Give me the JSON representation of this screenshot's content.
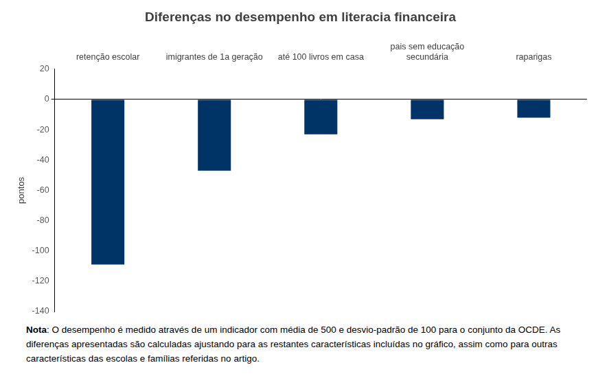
{
  "chart_data": {
    "type": "bar",
    "title": "Diferenças no desempenho em literacia financeira",
    "categories": [
      "retenção escolar",
      "imigrantes de 1a geração",
      "até 100 livros em casa",
      "pais sem educação secundária",
      "raparigas"
    ],
    "values": [
      -109,
      -47,
      -23,
      -13,
      -12
    ],
    "color": "#003366",
    "y_label": "pontos",
    "ylim": [
      -140,
      20
    ],
    "yticks": [
      -140,
      -120,
      -100,
      -80,
      -60,
      -40,
      -20,
      0,
      20
    ],
    "grid": false,
    "note": "Nota: O desempenho é medido através de um indicador com média de 500 e desvio-padrão de 100 para o conjunto da OCDE. As diferenças apresentadas são calculadas ajustando para as restantes características incluídas no gráfico, assim como para outras características das escolas e famílias referidas no artigo."
  }
}
